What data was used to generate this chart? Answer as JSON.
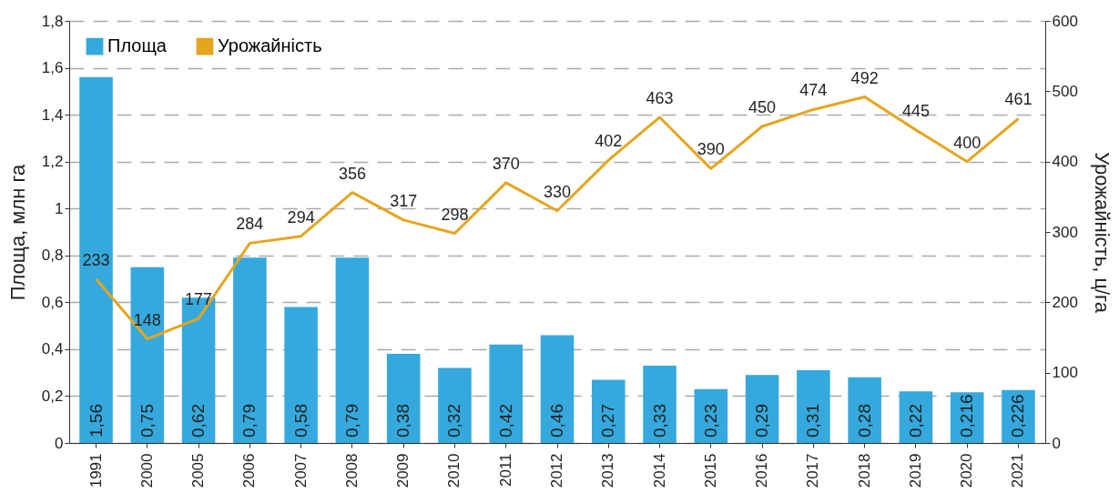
{
  "chart_data": {
    "type": "bar",
    "ylabel": "Площа, млн га",
    "y2label": "Урожайність, ц/га",
    "categories": [
      "1991",
      "2000",
      "2005",
      "2006",
      "2007",
      "2008",
      "2009",
      "2010",
      "2011",
      "2012",
      "2013",
      "2014",
      "2015",
      "2016",
      "2017",
      "2018",
      "2019",
      "2020",
      "2021"
    ],
    "series": [
      {
        "name": "Площа",
        "color": "#35a9dd",
        "values": [
          1.56,
          0.75,
          0.62,
          0.79,
          0.58,
          0.79,
          0.38,
          0.32,
          0.42,
          0.46,
          0.27,
          0.33,
          0.23,
          0.29,
          0.31,
          0.28,
          0.22,
          0.216,
          0.226
        ],
        "value_labels": [
          "1,56",
          "0,75",
          "0,62",
          "0,79",
          "0,58",
          "0,79",
          "0,38",
          "0,32",
          "0,42",
          "0,46",
          "0,27",
          "0,33",
          "0,23",
          "0,29",
          "0,31",
          "0,28",
          "0,22",
          "0,216",
          "0,226"
        ]
      },
      {
        "name": "Урожайність",
        "type": "line",
        "axis": "y2",
        "color": "#e6a51e",
        "values": [
          233,
          148,
          177,
          284,
          294,
          356,
          317,
          298,
          370,
          330,
          402,
          463,
          390,
          450,
          474,
          492,
          445,
          400,
          461
        ],
        "value_labels": [
          "233",
          "148",
          "177",
          "284",
          "294",
          "356",
          "317",
          "298",
          "370",
          "330",
          "402",
          "463",
          "390",
          "450",
          "474",
          "492",
          "445",
          "400",
          "461"
        ]
      }
    ],
    "ylim": [
      0,
      1.8
    ],
    "yticks": [
      0,
      {
        "value": 0.2,
        "label": "0,2"
      },
      {
        "value": 0.4,
        "label": "0,4"
      },
      {
        "value": 0.6,
        "label": "0,6"
      },
      {
        "value": 0.8,
        "label": "0,8"
      },
      1,
      {
        "value": 1.2,
        "label": "1,2"
      },
      {
        "value": 1.4,
        "label": "1,4"
      },
      {
        "value": 1.6,
        "label": "1,6"
      },
      {
        "value": 1.8,
        "label": "1,8"
      }
    ],
    "y2lim": [
      0,
      600
    ],
    "y2ticks": [
      0,
      100,
      200,
      300,
      400,
      500,
      600
    ],
    "grid": "y",
    "legend": "top left"
  }
}
